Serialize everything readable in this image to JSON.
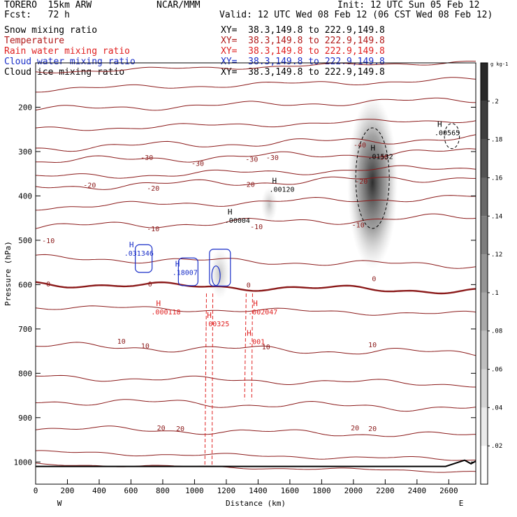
{
  "header": {
    "model": "TORERO  15km ARW",
    "org": "NCAR/MMM",
    "init": "Init: 12 UTC Sun 05 Feb 12",
    "fcst": "Fcst:   72 h",
    "valid": "Valid: 12 UTC Wed 08 Feb 12 (06 CST Wed 08 Feb 12)"
  },
  "fields": [
    {
      "name": "Snow mixing ratio",
      "color": "#000000",
      "xy": "XY=  38.3,149.8 to 222.9,149.8",
      "xy_color": "#000000"
    },
    {
      "name": "Temperature",
      "color": "#b01818",
      "xy": "XY=  38.3,149.8 to 222.9,149.8",
      "xy_color": "#b01818"
    },
    {
      "name": "Rain water mixing ratio",
      "color": "#e02020",
      "xy": "XY=  38.3,149.8 to 222.9,149.8",
      "xy_color": "#e02020"
    },
    {
      "name": "Cloud water mixing ratio",
      "color": "#1a2fc8",
      "xy": "XY=  38.3,149.8 to 222.9,149.8",
      "xy_color": "#1a2fc8"
    },
    {
      "name": "Cloud ice mixing ratio",
      "color": "#000000",
      "xy": "XY=  38.3,149.8 to 222.9,149.8",
      "xy_color": "#000000"
    }
  ],
  "chart_data": {
    "type": "cross-section",
    "xlabel": "Distance (km)",
    "ylabel": "Pressure (hPa)",
    "xlim": [
      0,
      2770
    ],
    "ylim": [
      1050,
      100
    ],
    "x_ticks": [
      0,
      200,
      400,
      600,
      800,
      1000,
      1200,
      1400,
      1600,
      1800,
      2000,
      2200,
      2400,
      2600
    ],
    "y_ticks": [
      200,
      300,
      400,
      500,
      600,
      700,
      800,
      900,
      1000
    ],
    "left_end": "W",
    "right_end": "E",
    "temperature_labels": [
      {
        "x": 2040,
        "p": 284,
        "text": "-40"
      },
      {
        "x": 1360,
        "p": 317,
        "text": "-30"
      },
      {
        "x": 2180,
        "p": 312,
        "text": "-30"
      },
      {
        "x": 700,
        "p": 313,
        "text": "-30"
      },
      {
        "x": 1490,
        "p": 313,
        "text": "-30"
      },
      {
        "x": 1020,
        "p": 326,
        "text": "-30"
      },
      {
        "x": 340,
        "p": 375,
        "text": "-20"
      },
      {
        "x": 740,
        "p": 382,
        "text": "-20"
      },
      {
        "x": 1340,
        "p": 373,
        "text": "-20"
      },
      {
        "x": 2050,
        "p": 366,
        "text": "-20"
      },
      {
        "x": 80,
        "p": 500,
        "text": "-10"
      },
      {
        "x": 740,
        "p": 473,
        "text": "-10"
      },
      {
        "x": 1390,
        "p": 469,
        "text": "-10"
      },
      {
        "x": 2030,
        "p": 465,
        "text": "-10"
      },
      {
        "x": 80,
        "p": 598,
        "text": "0"
      },
      {
        "x": 720,
        "p": 598,
        "text": "0"
      },
      {
        "x": 1340,
        "p": 600,
        "text": "0"
      },
      {
        "x": 2130,
        "p": 586,
        "text": "0"
      },
      {
        "x": 540,
        "p": 727,
        "text": "10"
      },
      {
        "x": 690,
        "p": 737,
        "text": "10"
      },
      {
        "x": 2120,
        "p": 735,
        "text": "10"
      },
      {
        "x": 1450,
        "p": 740,
        "text": "10"
      },
      {
        "x": 790,
        "p": 922,
        "text": "20"
      },
      {
        "x": 910,
        "p": 924,
        "text": "20"
      },
      {
        "x": 2010,
        "p": 922,
        "text": "20"
      },
      {
        "x": 2120,
        "p": 924,
        "text": "20"
      }
    ],
    "max_labels": [
      {
        "field": "cloud water",
        "x": 650,
        "p": 535,
        "text": ".031346"
      },
      {
        "field": "cloud water",
        "x": 940,
        "p": 578,
        "text": ".18007"
      },
      {
        "field": "rain water",
        "x": 820,
        "p": 667,
        "text": ".000118"
      },
      {
        "field": "rain water",
        "x": 1140,
        "p": 694,
        "text": ".00325"
      },
      {
        "field": "rain water",
        "x": 1430,
        "p": 667,
        "text": ".002047"
      },
      {
        "field": "rain water",
        "x": 1390,
        "p": 734,
        "text": ".001"
      },
      {
        "field": "cloud ice",
        "x": 1270,
        "p": 461,
        "text": ".00004"
      },
      {
        "field": "cloud ice",
        "x": 1550,
        "p": 391,
        "text": ".00120"
      },
      {
        "field": "cloud ice",
        "x": 2170,
        "p": 317,
        "text": ".01532"
      },
      {
        "field": "cloud ice",
        "x": 2590,
        "p": 263,
        "text": ".00565"
      }
    ],
    "snow_colorbar": {
      "units": "g kg-1",
      "ticks": [
        ".02",
        ".04",
        ".06",
        ".08",
        ".1",
        ".12",
        ".14",
        ".16",
        ".18",
        ".2"
      ],
      "max": 0.22
    },
    "snow_cells": [
      {
        "x": 2120,
        "p": 370,
        "value": 0.19
      },
      {
        "x": 1160,
        "p": 575,
        "value": 0.03
      },
      {
        "x": 1470,
        "p": 420,
        "value": 0.01
      }
    ]
  }
}
